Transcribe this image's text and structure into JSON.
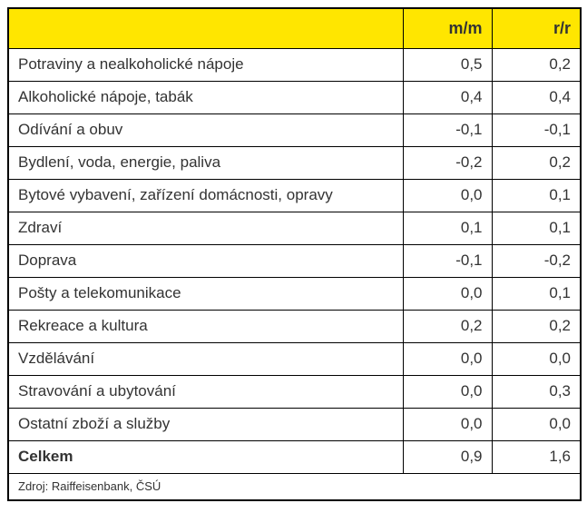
{
  "colors": {
    "header_bg": "#FFE600",
    "border": "#000000",
    "text": "#333333",
    "background": "#FFFFFF"
  },
  "table": {
    "header": {
      "category": "",
      "mm": "m/m",
      "rr": "r/r"
    },
    "rows": [
      {
        "label": "Potraviny a nealkoholické nápoje",
        "mm": "0,5",
        "rr": "0,2",
        "bold": false
      },
      {
        "label": "Alkoholické nápoje, tabák",
        "mm": "0,4",
        "rr": "0,4",
        "bold": false
      },
      {
        "label": "Odívání a obuv",
        "mm": "-0,1",
        "rr": "-0,1",
        "bold": false
      },
      {
        "label": "Bydlení, voda, energie, paliva",
        "mm": "-0,2",
        "rr": "0,2",
        "bold": false
      },
      {
        "label": "Bytové vybavení, zařízení domácnosti, opravy",
        "mm": "0,0",
        "rr": "0,1",
        "bold": false
      },
      {
        "label": "Zdraví",
        "mm": "0,1",
        "rr": "0,1",
        "bold": false
      },
      {
        "label": "Doprava",
        "mm": "-0,1",
        "rr": "-0,2",
        "bold": false
      },
      {
        "label": "Pošty a telekomunikace",
        "mm": "0,0",
        "rr": "0,1",
        "bold": false
      },
      {
        "label": "Rekreace a kultura",
        "mm": "0,2",
        "rr": "0,2",
        "bold": false
      },
      {
        "label": "Vzdělávání",
        "mm": "0,0",
        "rr": "0,0",
        "bold": false
      },
      {
        "label": "Stravování a ubytování",
        "mm": "0,0",
        "rr": "0,3",
        "bold": false
      },
      {
        "label": "Ostatní zboží a služby",
        "mm": "0,0",
        "rr": "0,0",
        "bold": false
      },
      {
        "label": "Celkem",
        "mm": "0,9",
        "rr": "1,6",
        "bold": true
      }
    ],
    "footer": "Zdroj: Raiffeisenbank, ČSÚ"
  },
  "chart_data": {
    "type": "table",
    "title": "",
    "columns": [
      "",
      "m/m",
      "r/r"
    ],
    "rows": [
      [
        "Potraviny a nealkoholické nápoje",
        0.5,
        0.2
      ],
      [
        "Alkoholické nápoje, tabák",
        0.4,
        0.4
      ],
      [
        "Odívání a obuv",
        -0.1,
        -0.1
      ],
      [
        "Bydlení, voda, energie, paliva",
        -0.2,
        0.2
      ],
      [
        "Bytové vybavení, zařízení domácnosti, opravy",
        0.0,
        0.1
      ],
      [
        "Zdraví",
        0.1,
        0.1
      ],
      [
        "Doprava",
        -0.1,
        -0.2
      ],
      [
        "Pošty a telekomunikace",
        0.0,
        0.1
      ],
      [
        "Rekreace a kultura",
        0.2,
        0.2
      ],
      [
        "Vzdělávání",
        0.0,
        0.0
      ],
      [
        "Stravování a ubytování",
        0.0,
        0.3
      ],
      [
        "Ostatní zboží a služby",
        0.0,
        0.0
      ],
      [
        "Celkem",
        0.9,
        1.6
      ]
    ],
    "decimal_separator": ",",
    "source": "Zdroj: Raiffeisenbank, ČSÚ"
  }
}
